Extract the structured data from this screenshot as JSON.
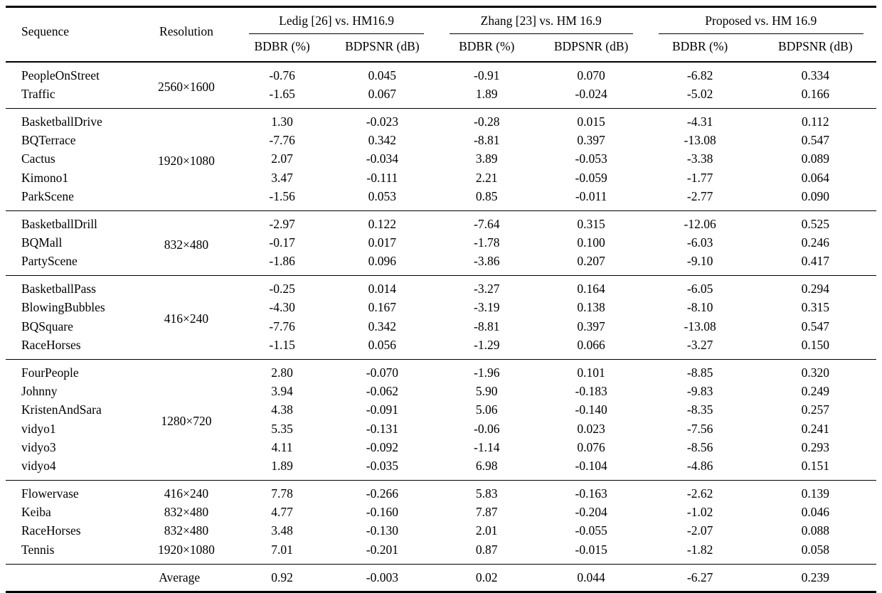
{
  "table": {
    "header": {
      "sequence": "Sequence",
      "resolution": "Resolution",
      "groups": [
        {
          "title": "Ledig [26] vs. HM16.9",
          "sub": [
            "BDBR (%)",
            "BDPSNR (dB)"
          ]
        },
        {
          "title": "Zhang [23] vs. HM 16.9",
          "sub": [
            "BDBR (%)",
            "BDPSNR (dB)"
          ]
        },
        {
          "title": "Proposed vs. HM 16.9",
          "sub": [
            "BDBR (%)",
            "BDPSNR (dB)"
          ]
        }
      ]
    },
    "body_groups": [
      {
        "resolution": "2560×1600",
        "rows": [
          {
            "sequence": "PeopleOnStreet",
            "values": [
              "-0.76",
              "0.045",
              "-0.91",
              "0.070",
              "-6.82",
              "0.334"
            ]
          },
          {
            "sequence": "Traffic",
            "values": [
              "-1.65",
              "0.067",
              "1.89",
              "-0.024",
              "-5.02",
              "0.166"
            ]
          }
        ]
      },
      {
        "resolution": "1920×1080",
        "rows": [
          {
            "sequence": "BasketballDrive",
            "values": [
              "1.30",
              "-0.023",
              "-0.28",
              "0.015",
              "-4.31",
              "0.112"
            ]
          },
          {
            "sequence": "BQTerrace",
            "values": [
              "-7.76",
              "0.342",
              "-8.81",
              "0.397",
              "-13.08",
              "0.547"
            ]
          },
          {
            "sequence": "Cactus",
            "values": [
              "2.07",
              "-0.034",
              "3.89",
              "-0.053",
              "-3.38",
              "0.089"
            ]
          },
          {
            "sequence": "Kimono1",
            "values": [
              "3.47",
              "-0.111",
              "2.21",
              "-0.059",
              "-1.77",
              "0.064"
            ]
          },
          {
            "sequence": "ParkScene",
            "values": [
              "-1.56",
              "0.053",
              "0.85",
              "-0.011",
              "-2.77",
              "0.090"
            ]
          }
        ]
      },
      {
        "resolution": "832×480",
        "rows": [
          {
            "sequence": "BasketballDrill",
            "values": [
              "-2.97",
              "0.122",
              "-7.64",
              "0.315",
              "-12.06",
              "0.525"
            ]
          },
          {
            "sequence": "BQMall",
            "values": [
              "-0.17",
              "0.017",
              "-1.78",
              "0.100",
              "-6.03",
              "0.246"
            ]
          },
          {
            "sequence": "PartyScene",
            "values": [
              "-1.86",
              "0.096",
              "-3.86",
              "0.207",
              "-9.10",
              "0.417"
            ]
          }
        ]
      },
      {
        "resolution": "416×240",
        "rows": [
          {
            "sequence": "BasketballPass",
            "values": [
              "-0.25",
              "0.014",
              "-3.27",
              "0.164",
              "-6.05",
              "0.294"
            ]
          },
          {
            "sequence": "BlowingBubbles",
            "values": [
              "-4.30",
              "0.167",
              "-3.19",
              "0.138",
              "-8.10",
              "0.315"
            ]
          },
          {
            "sequence": "BQSquare",
            "values": [
              "-7.76",
              "0.342",
              "-8.81",
              "0.397",
              "-13.08",
              "0.547"
            ]
          },
          {
            "sequence": "RaceHorses",
            "values": [
              "-1.15",
              "0.056",
              "-1.29",
              "0.066",
              "-3.27",
              "0.150"
            ]
          }
        ]
      },
      {
        "resolution": "1280×720",
        "rows": [
          {
            "sequence": "FourPeople",
            "values": [
              "2.80",
              "-0.070",
              "-1.96",
              "0.101",
              "-8.85",
              "0.320"
            ]
          },
          {
            "sequence": "Johnny",
            "values": [
              "3.94",
              "-0.062",
              "5.90",
              "-0.183",
              "-9.83",
              "0.249"
            ]
          },
          {
            "sequence": "KristenAndSara",
            "values": [
              "4.38",
              "-0.091",
              "5.06",
              "-0.140",
              "-8.35",
              "0.257"
            ]
          },
          {
            "sequence": "vidyo1",
            "values": [
              "5.35",
              "-0.131",
              "-0.06",
              "0.023",
              "-7.56",
              "0.241"
            ]
          },
          {
            "sequence": "vidyo3",
            "values": [
              "4.11",
              "-0.092",
              "-1.14",
              "0.076",
              "-8.56",
              "0.293"
            ]
          },
          {
            "sequence": "vidyo4",
            "values": [
              "1.89",
              "-0.035",
              "6.98",
              "-0.104",
              "-4.86",
              "0.151"
            ]
          }
        ]
      },
      {
        "rows": [
          {
            "sequence": "Flowervase",
            "resolution": "416×240",
            "values": [
              "7.78",
              "-0.266",
              "5.83",
              "-0.163",
              "-2.62",
              "0.139"
            ]
          },
          {
            "sequence": "Keiba",
            "resolution": "832×480",
            "values": [
              "4.77",
              "-0.160",
              "7.87",
              "-0.204",
              "-1.02",
              "0.046"
            ]
          },
          {
            "sequence": "RaceHorses",
            "resolution": "832×480",
            "values": [
              "3.48",
              "-0.130",
              "2.01",
              "-0.055",
              "-2.07",
              "0.088"
            ]
          },
          {
            "sequence": "Tennis",
            "resolution": "1920×1080",
            "values": [
              "7.01",
              "-0.201",
              "0.87",
              "-0.015",
              "-1.82",
              "0.058"
            ]
          }
        ]
      }
    ],
    "average": {
      "label": "Average",
      "values": [
        "0.92",
        "-0.003",
        "0.02",
        "0.044",
        "-6.27",
        "0.239"
      ]
    }
  }
}
